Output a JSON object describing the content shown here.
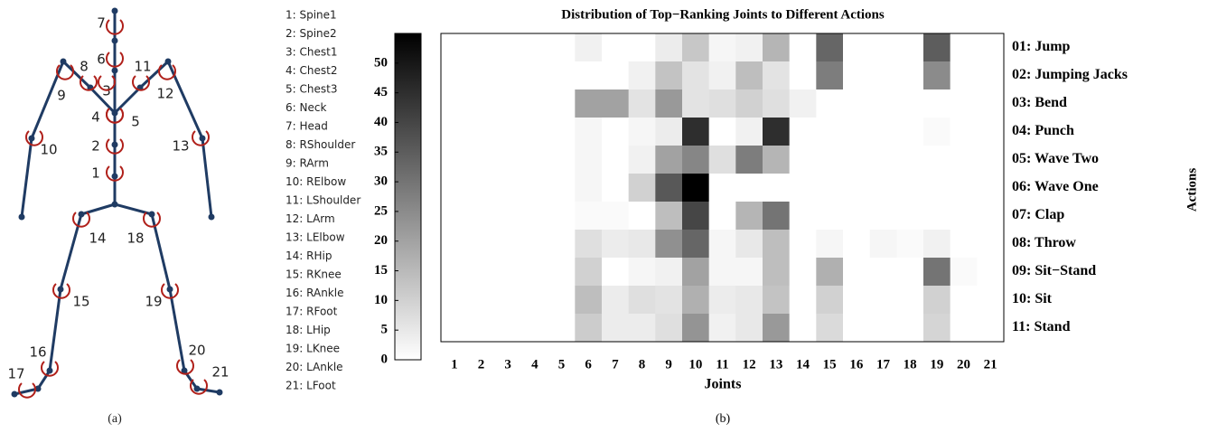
{
  "skeleton": {
    "markers": [
      "1",
      "2",
      "3",
      "4",
      "5",
      "6",
      "7",
      "8",
      "9",
      "10",
      "11",
      "12",
      "13",
      "14",
      "15",
      "16",
      "17",
      "18",
      "19",
      "20",
      "21"
    ],
    "legend": [
      "1: Spine1",
      "2: Spine2",
      "3: Chest1",
      "4: Chest2",
      "5: Chest3",
      "6: Neck",
      "7: Head",
      "8: RShoulder",
      "9: RArm",
      "10: RElbow",
      "11: LShoulder",
      "12: LArm",
      "13: LElbow",
      "14: RHip",
      "15: RKnee",
      "16: RAnkle",
      "17: RFoot",
      "18: LHip",
      "19: LKnee",
      "20: LAnkle",
      "21: LFoot"
    ],
    "caption": "(a)"
  },
  "chart_data": {
    "type": "heatmap",
    "title": "Distribution of Top−Ranking Joints to Different Actions",
    "xlabel": "Joints",
    "ylabel": "Actions",
    "caption": "(b)",
    "x": [
      1,
      2,
      3,
      4,
      5,
      6,
      7,
      8,
      9,
      10,
      11,
      12,
      13,
      14,
      15,
      16,
      17,
      18,
      19,
      20,
      21
    ],
    "categories": [
      "01: Jump",
      "02: Jumping Jacks",
      "03: Bend",
      "04: Punch",
      "05: Wave Two",
      "06: Wave One",
      "07: Clap",
      "08: Throw",
      "09: Sit−Stand",
      "10: Sit",
      "11: Stand"
    ],
    "z": [
      [
        0,
        0,
        0,
        0,
        0,
        3,
        0,
        0,
        4,
        12,
        2,
        3,
        16,
        0,
        33,
        0,
        0,
        0,
        35,
        0,
        0
      ],
      [
        0,
        0,
        0,
        0,
        0,
        0,
        0,
        3,
        13,
        6,
        3,
        14,
        6,
        0,
        28,
        0,
        0,
        0,
        25,
        0,
        0
      ],
      [
        0,
        0,
        0,
        0,
        0,
        20,
        20,
        6,
        22,
        6,
        7,
        10,
        7,
        3,
        0,
        0,
        0,
        0,
        0,
        0,
        0
      ],
      [
        0,
        0,
        0,
        0,
        0,
        2,
        0,
        2,
        4,
        45,
        0,
        3,
        45,
        0,
        0,
        0,
        0,
        0,
        1,
        0,
        0
      ],
      [
        0,
        0,
        0,
        0,
        0,
        2,
        0,
        3,
        20,
        26,
        7,
        28,
        16,
        0,
        0,
        0,
        0,
        0,
        0,
        0,
        0
      ],
      [
        0,
        0,
        0,
        0,
        0,
        2,
        0,
        10,
        36,
        55,
        0,
        0,
        0,
        0,
        0,
        0,
        0,
        0,
        0,
        0,
        0
      ],
      [
        0,
        0,
        0,
        0,
        0,
        1,
        1,
        0,
        14,
        40,
        0,
        16,
        30,
        0,
        0,
        0,
        0,
        0,
        0,
        0,
        0
      ],
      [
        0,
        0,
        0,
        0,
        0,
        7,
        4,
        5,
        24,
        33,
        2,
        5,
        14,
        0,
        2,
        0,
        2,
        1,
        3,
        0,
        0
      ],
      [
        0,
        0,
        0,
        0,
        0,
        10,
        0,
        2,
        3,
        20,
        2,
        2,
        14,
        0,
        17,
        0,
        0,
        0,
        30,
        1,
        0
      ],
      [
        0,
        0,
        0,
        0,
        0,
        14,
        4,
        7,
        6,
        17,
        4,
        5,
        13,
        0,
        10,
        0,
        0,
        0,
        10,
        0,
        0
      ],
      [
        0,
        0,
        0,
        0,
        0,
        11,
        4,
        4,
        7,
        23,
        3,
        5,
        22,
        0,
        8,
        0,
        0,
        0,
        9,
        0,
        0
      ]
    ],
    "colormap": "gray_r",
    "clim": [
      0,
      55
    ],
    "cticks": [
      0,
      5,
      10,
      15,
      20,
      25,
      30,
      35,
      40,
      45,
      50
    ]
  }
}
